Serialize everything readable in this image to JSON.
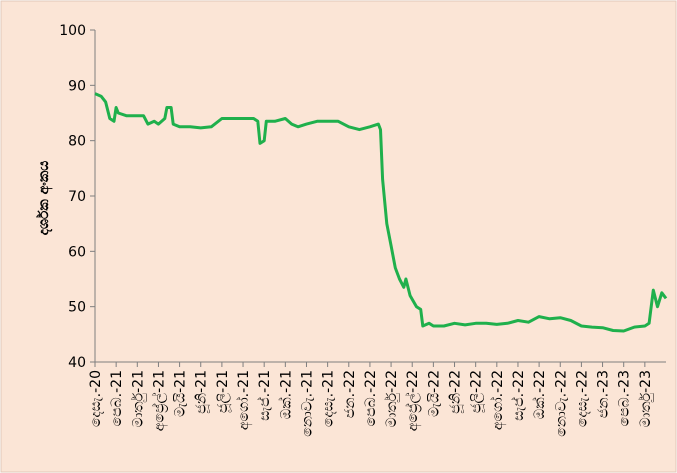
{
  "chart_data": {
    "type": "line",
    "y_label": "දර්ශක අංකය",
    "xlim": [
      0,
      27
    ],
    "xticks": [
      {
        "value": 0,
        "label": "දෙසැ.-20"
      },
      {
        "value": 1,
        "label": "පෙබ.-21"
      },
      {
        "value": 2,
        "label": "මාර්තු-21"
      },
      {
        "value": 3,
        "label": "අප්‍රේල්-21"
      },
      {
        "value": 4,
        "label": "මැයි-21"
      },
      {
        "value": 5,
        "label": "ජූනි-21"
      },
      {
        "value": 6,
        "label": "ජූලි-21"
      },
      {
        "value": 7,
        "label": "අගෝ.-21"
      },
      {
        "value": 8,
        "label": "සැප්.-21"
      },
      {
        "value": 9,
        "label": "ඔක්.-21"
      },
      {
        "value": 10,
        "label": "නොවැ.-21"
      },
      {
        "value": 11,
        "label": "දෙසැ.-21"
      },
      {
        "value": 12,
        "label": "ජන.-22"
      },
      {
        "value": 13,
        "label": "පෙබ.-22"
      },
      {
        "value": 14,
        "label": "මාර්තු-22"
      },
      {
        "value": 15,
        "label": "අප්‍රේල්-22"
      },
      {
        "value": 16,
        "label": "මැයි-22"
      },
      {
        "value": 17,
        "label": "ජූනි-22"
      },
      {
        "value": 18,
        "label": "ජූලි-22"
      },
      {
        "value": 19,
        "label": "අගෝ.-22"
      },
      {
        "value": 20,
        "label": "සැප්.-22"
      },
      {
        "value": 21,
        "label": "ඔක්.-22"
      },
      {
        "value": 22,
        "label": "නොවැ.-22"
      },
      {
        "value": 23,
        "label": "දෙසැ.-22"
      },
      {
        "value": 24,
        "label": "ජන.-23"
      },
      {
        "value": 25,
        "label": "පෙබ.-23"
      },
      {
        "value": 26,
        "label": "මාර්තු-23"
      }
    ],
    "ylim": [
      40,
      100
    ],
    "yticks": [
      40,
      50,
      60,
      70,
      80,
      90,
      100
    ],
    "series": [
      {
        "color": "#1fb04c",
        "x": [
          0,
          0.3,
          0.5,
          0.7,
          0.9,
          1.0,
          1.1,
          1.5,
          2,
          2.3,
          2.5,
          2.8,
          3.0,
          3.3,
          3.4,
          3.6,
          3.7,
          4,
          4.5,
          5,
          5.5,
          6,
          6.5,
          7,
          7.5,
          7.7,
          7.8,
          8,
          8.1,
          8.5,
          9,
          9.3,
          9.6,
          10,
          10.5,
          11,
          11.5,
          12,
          12.5,
          13,
          13.4,
          13.5,
          13.6,
          13.8,
          14,
          14.2,
          14.4,
          14.6,
          14.7,
          14.9,
          15.2,
          15.4,
          15.5,
          15.8,
          16,
          16.5,
          17,
          17.5,
          18,
          18.5,
          19,
          19.5,
          20,
          20.5,
          21,
          21.5,
          22,
          22.5,
          23,
          23.5,
          24,
          24.5,
          25,
          25.5,
          26,
          26.2,
          26.4,
          26.6,
          26.8,
          27
        ],
        "values": [
          88.5,
          88,
          87,
          84,
          83.5,
          86,
          85,
          84.5,
          84.5,
          84.5,
          83,
          83.5,
          83,
          84,
          86,
          86,
          83,
          82.5,
          82.5,
          82.3,
          82.5,
          84,
          84,
          84,
          84,
          83.5,
          79.5,
          80,
          83.5,
          83.5,
          84,
          83,
          82.5,
          83,
          83.5,
          83.5,
          83.5,
          82.5,
          82,
          82.5,
          83,
          82,
          73,
          65,
          61,
          57,
          55,
          53.5,
          55,
          52,
          50,
          49.5,
          46.5,
          47,
          46.5,
          46.5,
          47,
          46.7,
          47,
          47,
          46.8,
          47,
          47.5,
          47.2,
          48.2,
          47.8,
          48,
          47.5,
          46.5,
          46.3,
          46.2,
          45.7,
          45.6,
          46.3,
          46.5,
          47,
          53,
          50,
          52.5,
          51.5
        ]
      }
    ]
  }
}
